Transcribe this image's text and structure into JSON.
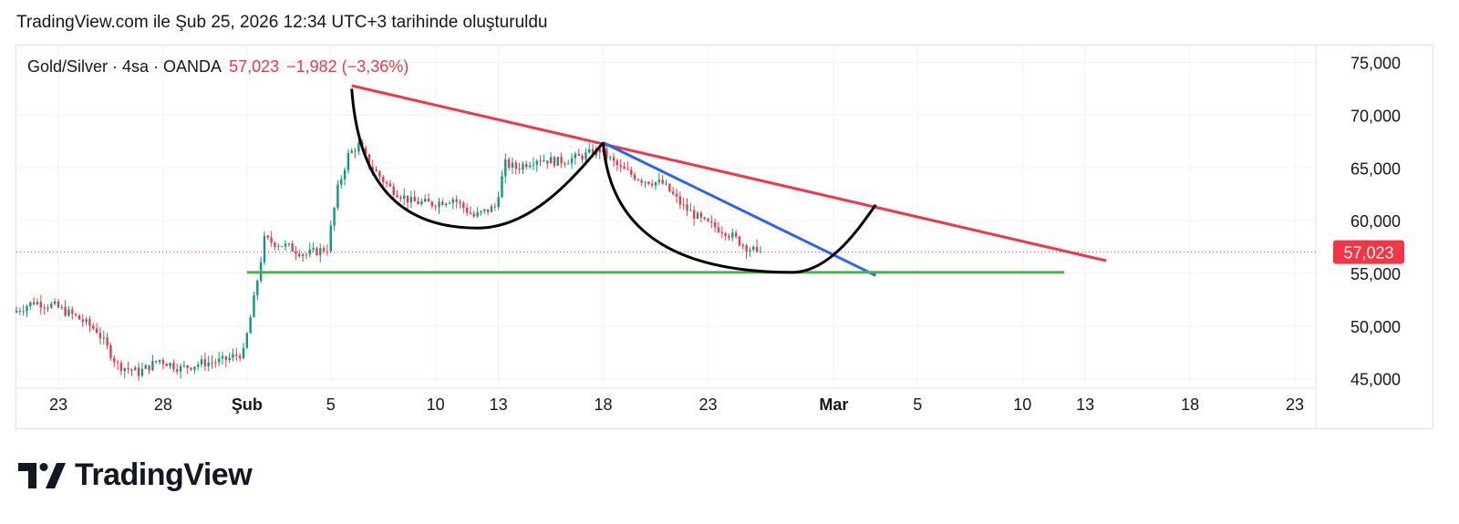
{
  "header": {
    "caption": "TradingView.com ile Şub 25, 2026 12:34 UTC+3 tarihinde oluşturuldu"
  },
  "legend": {
    "symbol": "Gold/Silver · 4sa · OANDA",
    "price": "57,023",
    "change": "−1,982 (−3,36%)"
  },
  "brand": {
    "name": "TradingView",
    "logo_icon": "tradingview-logo-icon"
  },
  "colors": {
    "up": "#089981",
    "down": "#f23645",
    "trendline_red": "#f23645",
    "trendline_blue": "#2962ff",
    "support_green": "#4caf50",
    "arc_black": "#000000"
  },
  "chart_data": {
    "type": "candlestick",
    "symbol": "Gold/Silver",
    "interval": "4sa",
    "source": "OANDA",
    "last_price": 57.023,
    "last_price_label": "57,023",
    "y_axis": {
      "ticks": [
        45,
        50,
        55,
        60,
        65,
        70,
        75
      ],
      "tick_labels": [
        "45,000",
        "50,000",
        "55,000",
        "60,000",
        "65,000",
        "70,000",
        "75,000"
      ],
      "range": [
        44.2,
        76.6
      ]
    },
    "x_axis": {
      "range": [
        "2026-01-21",
        "2026-03-24"
      ],
      "ticks": [
        {
          "date": "2026-01-23",
          "label": "23",
          "bold": false
        },
        {
          "date": "2026-01-28",
          "label": "28",
          "bold": false
        },
        {
          "date": "2026-02-01",
          "label": "Şub",
          "bold": true
        },
        {
          "date": "2026-02-05",
          "label": "5",
          "bold": false
        },
        {
          "date": "2026-02-10",
          "label": "10",
          "bold": false
        },
        {
          "date": "2026-02-13",
          "label": "13",
          "bold": false
        },
        {
          "date": "2026-02-18",
          "label": "18",
          "bold": false
        },
        {
          "date": "2026-02-23",
          "label": "23",
          "bold": false
        },
        {
          "date": "2026-03-01",
          "label": "Mar",
          "bold": true
        },
        {
          "date": "2026-03-05",
          "label": "5",
          "bold": false
        },
        {
          "date": "2026-03-10",
          "label": "10",
          "bold": false
        },
        {
          "date": "2026-03-13",
          "label": "13",
          "bold": false
        },
        {
          "date": "2026-03-18",
          "label": "18",
          "bold": false
        },
        {
          "date": "2026-03-23",
          "label": "23",
          "bold": false
        }
      ]
    },
    "grid": true,
    "price_path": [
      [
        "2026-01-21",
        51.3
      ],
      [
        "2026-01-22",
        52.3
      ],
      [
        "2026-01-23",
        51.9
      ],
      [
        "2026-01-24",
        50.9
      ],
      [
        "2026-01-25",
        49.6
      ],
      [
        "2026-01-26",
        46.3
      ],
      [
        "2026-01-27",
        45.6
      ],
      [
        "2026-01-28",
        46.8
      ],
      [
        "2026-01-29",
        46.0
      ],
      [
        "2026-01-30",
        46.5
      ],
      [
        "2026-01-31",
        46.7
      ],
      [
        "2026-02-01",
        47.5
      ],
      [
        "2026-02-01T12",
        52.5
      ],
      [
        "2026-02-02",
        58.2
      ],
      [
        "2026-02-03",
        57.6
      ],
      [
        "2026-02-04",
        56.8
      ],
      [
        "2026-02-05",
        57.4
      ],
      [
        "2026-02-05T12",
        63.0
      ],
      [
        "2026-02-06",
        66.2
      ],
      [
        "2026-02-06T12",
        67.2
      ],
      [
        "2026-02-07",
        65.3
      ],
      [
        "2026-02-08",
        63.1
      ],
      [
        "2026-02-09",
        61.8
      ],
      [
        "2026-02-10",
        61.6
      ],
      [
        "2026-02-11",
        62.1
      ],
      [
        "2026-02-12",
        60.4
      ],
      [
        "2026-02-13",
        61.3
      ],
      [
        "2026-02-13T12",
        65.4
      ],
      [
        "2026-02-14",
        65.0
      ],
      [
        "2026-02-15",
        65.9
      ],
      [
        "2026-02-16",
        65.6
      ],
      [
        "2026-02-17",
        66.0
      ],
      [
        "2026-02-18",
        66.7
      ],
      [
        "2026-02-19",
        64.9
      ],
      [
        "2026-02-20",
        63.9
      ],
      [
        "2026-02-21",
        63.5
      ],
      [
        "2026-02-22",
        61.3
      ],
      [
        "2026-02-23",
        59.8
      ],
      [
        "2026-02-24",
        59.0
      ],
      [
        "2026-02-25",
        57.5
      ],
      [
        "2026-02-25T12",
        57.023
      ]
    ],
    "drawings": [
      {
        "type": "trendline",
        "color": "red",
        "from": [
          "2026-02-06",
          72.8
        ],
        "to": [
          "2026-03-14",
          56.2
        ]
      },
      {
        "type": "trendline",
        "color": "blue",
        "from": [
          "2026-02-18",
          67.4
        ],
        "to": [
          "2026-03-03",
          54.8
        ]
      },
      {
        "type": "horizontal_support",
        "color": "green",
        "from": [
          "2026-02-01",
          55.1
        ],
        "to": [
          "2026-03-12",
          55.1
        ]
      },
      {
        "type": "arc",
        "color": "black",
        "points": [
          [
            "2026-02-06",
            72.5
          ],
          [
            "2026-02-12",
            59.3
          ],
          [
            "2026-02-18",
            67.4
          ]
        ]
      },
      {
        "type": "arc",
        "color": "black",
        "points": [
          [
            "2026-02-18",
            67.4
          ],
          [
            "2026-02-27",
            55.1
          ],
          [
            "2026-03-03",
            61.5
          ]
        ]
      }
    ]
  }
}
